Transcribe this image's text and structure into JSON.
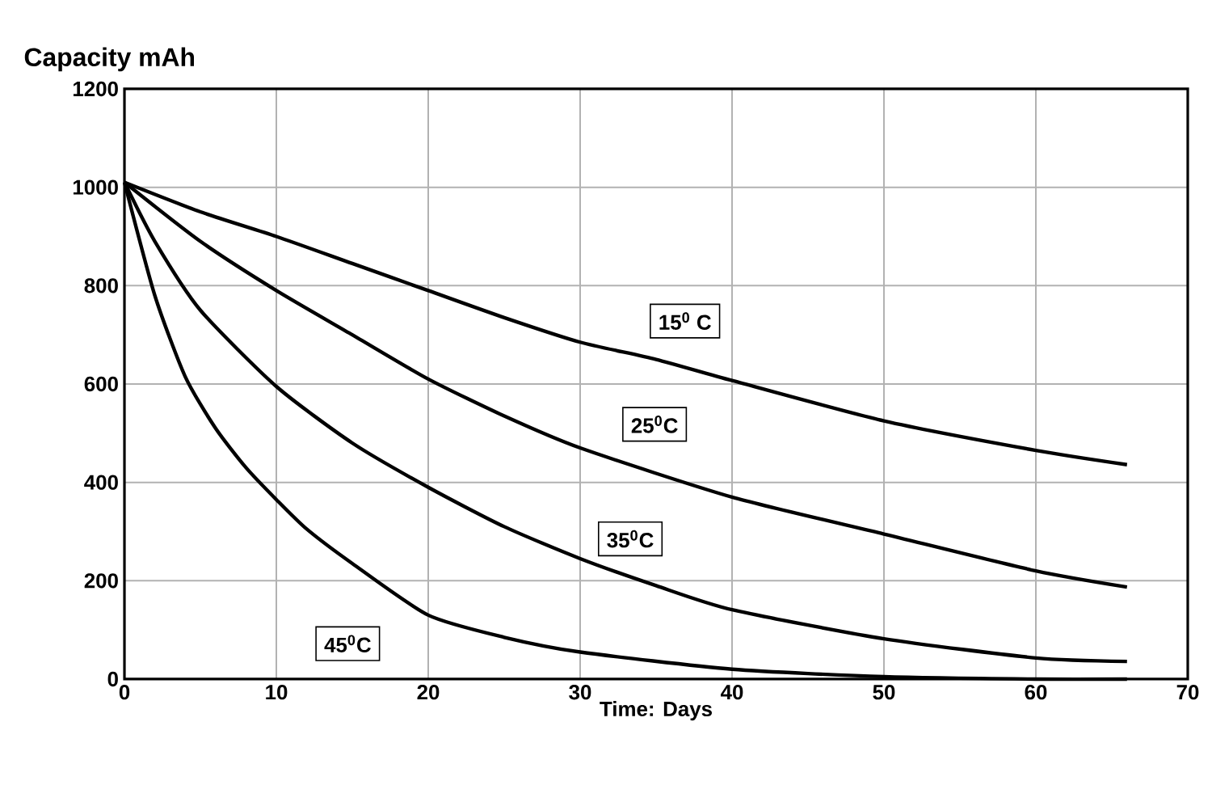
{
  "chart_data": {
    "type": "line",
    "ylabel": "Capacity mAh",
    "xlabel": "Time: Days",
    "xlim": [
      0,
      70
    ],
    "xticks": [
      0,
      10,
      20,
      30,
      40,
      50,
      60,
      70
    ],
    "ylim": [
      0,
      1200
    ],
    "yticks": [
      0,
      200,
      400,
      600,
      800,
      1000,
      1200
    ],
    "grid": true,
    "marker": "none",
    "line_style": "solid",
    "series": [
      {
        "color": "#000000",
        "x": [
          0,
          5,
          10,
          15,
          20,
          25,
          30,
          35,
          40,
          50,
          60,
          66
        ],
        "values": [
          1010,
          950,
          900,
          845,
          790,
          735,
          685,
          650,
          607,
          525,
          465,
          436
        ]
      },
      {
        "color": "#000000",
        "x": [
          0,
          5,
          10,
          15,
          20,
          25,
          30,
          40,
          50,
          60,
          66
        ],
        "values": [
          1010,
          890,
          790,
          700,
          610,
          535,
          470,
          370,
          295,
          220,
          187
        ]
      },
      {
        "color": "#000000",
        "x": [
          0,
          2,
          5,
          10,
          15,
          20,
          25,
          30,
          35,
          40,
          50,
          60,
          66
        ],
        "values": [
          1010,
          890,
          750,
          595,
          480,
          390,
          310,
          245,
          190,
          141,
          82,
          43,
          36
        ]
      },
      {
        "color": "#000000",
        "x": [
          0,
          2,
          4,
          6,
          8,
          10,
          12,
          15,
          20,
          25,
          30,
          40,
          50,
          60,
          66
        ],
        "values": [
          1010,
          780,
          615,
          510,
          430,
          365,
          305,
          235,
          130,
          85,
          55,
          20,
          5,
          0,
          0
        ]
      }
    ],
    "annotations": [
      {
        "text": "15$^{0}$ C",
        "x": 36.9,
        "y": 728
      },
      {
        "text": "25$^{0}$C",
        "x": 34.9,
        "y": 518
      },
      {
        "text": "35$^{0}$C",
        "x": 33.3,
        "y": 285
      },
      {
        "text": "45$^{0}$C",
        "x": 14.7,
        "y": 72
      }
    ]
  }
}
